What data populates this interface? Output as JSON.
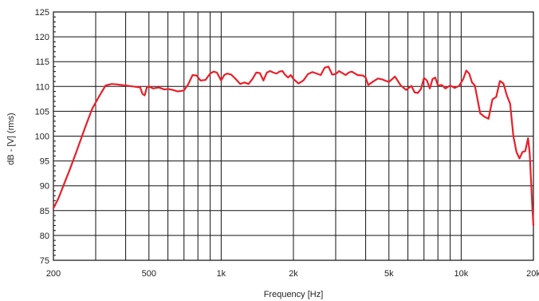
{
  "chart_data": {
    "type": "line",
    "title": "",
    "xlabel": "Frequency [Hz]",
    "ylabel": "dB - [V] (rms)",
    "x_scale": "log",
    "xlim": [
      200,
      20000
    ],
    "ylim": [
      75,
      125
    ],
    "grid": true,
    "x_tick_labels": [
      {
        "value": 200,
        "label": "200"
      },
      {
        "value": 500,
        "label": "500"
      },
      {
        "value": 1000,
        "label": "1k"
      },
      {
        "value": 2000,
        "label": "2k"
      },
      {
        "value": 5000,
        "label": "5k"
      },
      {
        "value": 10000,
        "label": "10k"
      },
      {
        "value": 20000,
        "label": "20k"
      }
    ],
    "x_gridlines": [
      300,
      400,
      500,
      600,
      700,
      800,
      900,
      1000,
      2000,
      3000,
      4000,
      5000,
      6000,
      7000,
      8000,
      9000,
      10000
    ],
    "y_ticks": [
      75,
      80,
      85,
      90,
      95,
      100,
      105,
      110,
      115,
      120,
      125
    ],
    "line_color": "#e8202a",
    "grid_color": "#111111",
    "series": [
      {
        "x": [
          200,
          210,
          220,
          235,
          250,
          270,
          290,
          310,
          330,
          350,
          370,
          400,
          430,
          460,
          470,
          480,
          490,
          500,
          520,
          550,
          580,
          600,
          630,
          660,
          700,
          730,
          760,
          790,
          820,
          860,
          900,
          930,
          960,
          1000,
          1030,
          1060,
          1100,
          1150,
          1200,
          1250,
          1300,
          1350,
          1400,
          1450,
          1500,
          1550,
          1600,
          1650,
          1700,
          1750,
          1800,
          1850,
          1900,
          1950,
          2000,
          2100,
          2200,
          2300,
          2400,
          2500,
          2600,
          2700,
          2800,
          2900,
          3000,
          3100,
          3200,
          3300,
          3400,
          3500,
          3700,
          3900,
          4000,
          4100,
          4300,
          4500,
          4700,
          5000,
          5300,
          5600,
          5900,
          6200,
          6400,
          6600,
          6800,
          7000,
          7200,
          7400,
          7600,
          7800,
          8000,
          8300,
          8600,
          9000,
          9400,
          9800,
          10200,
          10500,
          10800,
          11100,
          11400,
          11700,
          12000,
          12500,
          13000,
          13500,
          14000,
          14500,
          15000,
          15500,
          16000,
          16500,
          17000,
          17500,
          18000,
          18500,
          19000,
          19300,
          19600,
          19800,
          20000
        ],
        "y": [
          85.5,
          87.5,
          90,
          93.5,
          97,
          101.5,
          105.5,
          108,
          110.2,
          110.5,
          110.4,
          110.2,
          110,
          109.8,
          108.5,
          108.2,
          109.8,
          110,
          109.6,
          109.8,
          109.4,
          109.5,
          109.3,
          109,
          109.2,
          110.5,
          112.3,
          112.2,
          111.2,
          111.3,
          112.6,
          113,
          112.8,
          111.2,
          112.3,
          112.6,
          112.4,
          111.5,
          110.5,
          110.8,
          110.5,
          111.5,
          112.8,
          112.7,
          111.2,
          112.8,
          113.1,
          112.8,
          112.6,
          113,
          113.1,
          112.3,
          111.8,
          112.3,
          111.5,
          110.6,
          111.2,
          112.5,
          112.9,
          112.6,
          112.3,
          113.8,
          114,
          112.4,
          112.5,
          113.1,
          112.7,
          112.3,
          112.8,
          113,
          112.3,
          112.2,
          111.8,
          110.3,
          111,
          111.6,
          111.4,
          110.9,
          112,
          110.2,
          109.3,
          110.1,
          108.8,
          108.7,
          109.5,
          111.7,
          111.2,
          109.6,
          111.5,
          111.8,
          110.2,
          110.3,
          109.6,
          110.2,
          109.7,
          110.1,
          111.5,
          113.2,
          112.6,
          110.8,
          110.2,
          107.4,
          104.6,
          103.9,
          103.5,
          107.4,
          107.9,
          111.1,
          110.6,
          108.2,
          106.5,
          100,
          96.8,
          95.5,
          96.8,
          97,
          99.6,
          96.5,
          90,
          85.5,
          82
        ]
      }
    ]
  }
}
